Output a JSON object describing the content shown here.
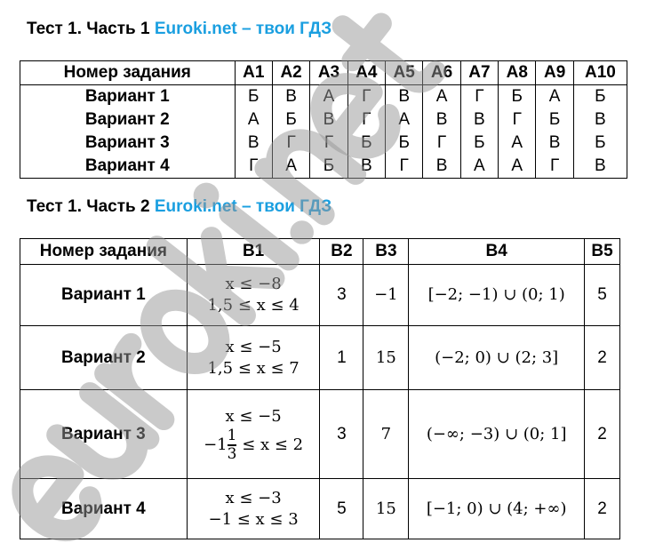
{
  "watermark": "euroki.net",
  "part1": {
    "title": "Тест 1. Часть 1",
    "brand": "Euroki.net – твои ГДЗ",
    "headers": [
      "Номер задания",
      "A1",
      "A2",
      "A3",
      "A4",
      "A5",
      "A6",
      "A7",
      "A8",
      "A9",
      "A10"
    ],
    "rows": [
      {
        "label": "Вариант 1",
        "cells": [
          "Б",
          "В",
          "А",
          "Г",
          "В",
          "А",
          "Г",
          "Б",
          "А",
          "Б"
        ]
      },
      {
        "label": "Вариант 2",
        "cells": [
          "А",
          "Б",
          "В",
          "Г",
          "А",
          "В",
          "В",
          "Г",
          "Б",
          "В"
        ]
      },
      {
        "label": "Вариант 3",
        "cells": [
          "В",
          "Г",
          "Г",
          "Б",
          "Б",
          "Г",
          "Б",
          "А",
          "В",
          "Б"
        ]
      },
      {
        "label": "Вариант 4",
        "cells": [
          "Г",
          "А",
          "Б",
          "В",
          "Г",
          "В",
          "А",
          "А",
          "Г",
          "В"
        ]
      }
    ]
  },
  "part2": {
    "title": "Тест 1. Часть 2",
    "brand": "Euroki.net – твои ГДЗ",
    "headers": [
      "Номер задания",
      "B1",
      "B2",
      "B3",
      "B4",
      "B5"
    ],
    "rows": [
      {
        "label": "Вариант 1",
        "b1": [
          "x ≤ −8",
          "1,5 ≤ x ≤ 4"
        ],
        "b2": "3",
        "b3": "−1",
        "b4": "[−2; −1) ∪ (0; 1)",
        "b5": "5"
      },
      {
        "label": "Вариант 2",
        "b1": [
          "x ≤ −5",
          "1,5 ≤ x ≤ 7"
        ],
        "b2": "1",
        "b3": "15",
        "b4": "(−2; 0) ∪ (2; 3]",
        "b5": "2"
      },
      {
        "label": "Вариант 3",
        "b1": [
          "x ≤ −5",
          {
            "whole": "−1",
            "num": "1",
            "den": "3",
            "rest": "≤ x ≤ 2"
          }
        ],
        "b2": "3",
        "b3": "7",
        "b4": "(−∞; −3) ∪ (0; 1]",
        "b5": "2"
      },
      {
        "label": "Вариант 4",
        "b1": [
          "x ≤ −3",
          "−1 ≤ x ≤ 3"
        ],
        "b2": "5",
        "b3": "15",
        "b4": "[−1; 0) ∪ (4; +∞)",
        "b5": "2"
      }
    ]
  }
}
